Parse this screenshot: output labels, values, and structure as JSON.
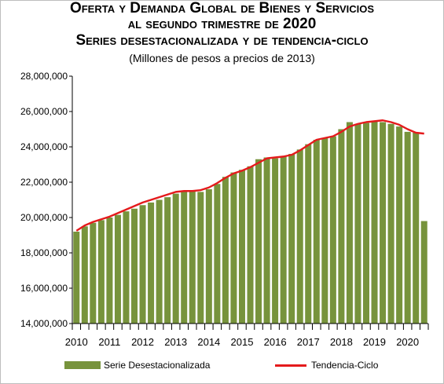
{
  "chart_data": {
    "type": "bar",
    "title": "Oferta y Demanda Global de Bienes y Servicios al segundo trimestre de 2020",
    "subtitle": "Series desestacionalizada y de tendencia-ciclo",
    "unit_note": "(Millones de pesos a precios de 2013)",
    "xlabel": "",
    "ylabel": "",
    "ylim": [
      14000000,
      28000000
    ],
    "y_ticks": [
      14000000,
      16000000,
      18000000,
      20000000,
      22000000,
      24000000,
      26000000,
      28000000
    ],
    "y_tick_labels": [
      "14,000,000",
      "16,000,000",
      "18,000,000",
      "20,000,000",
      "22,000,000",
      "24,000,000",
      "26,000,000",
      "28,000,000"
    ],
    "year_labels": [
      "2010",
      "2011",
      "2012",
      "2013",
      "2014",
      "2015",
      "2016",
      "2017",
      "2018",
      "2019",
      "2020"
    ],
    "quarters_per_year": 4,
    "grid": false,
    "legend_position": "bottom",
    "series": [
      {
        "name": "Serie Desestacionalizada",
        "kind": "bar",
        "color": "#77933c",
        "values": [
          19200000,
          19500000,
          19700000,
          19850000,
          20000000,
          20150000,
          20350000,
          20500000,
          20700000,
          20850000,
          21000000,
          21150000,
          21350000,
          21450000,
          21500000,
          21450000,
          21600000,
          21900000,
          22300000,
          22550000,
          22700000,
          22900000,
          23300000,
          23400000,
          23350000,
          23450000,
          23600000,
          23850000,
          24150000,
          24400000,
          24500000,
          24600000,
          25000000,
          25400000,
          25300000,
          25350000,
          25450000,
          25400000,
          25300000,
          25150000,
          24850000,
          24800000,
          19800000
        ]
      },
      {
        "name": "Tendencia-Ciclo",
        "kind": "line",
        "color": "#e41a1c",
        "values": [
          19250000,
          19550000,
          19750000,
          19900000,
          20050000,
          20250000,
          20450000,
          20650000,
          20850000,
          21000000,
          21150000,
          21300000,
          21450000,
          21500000,
          21500000,
          21550000,
          21700000,
          21950000,
          22250000,
          22500000,
          22650000,
          22850000,
          23100000,
          23350000,
          23400000,
          23450000,
          23550000,
          23800000,
          24100000,
          24400000,
          24500000,
          24600000,
          24850000,
          25150000,
          25300000,
          25400000,
          25450000,
          25500000,
          25400000,
          25250000,
          25000000,
          24800000,
          24750000
        ]
      }
    ]
  }
}
